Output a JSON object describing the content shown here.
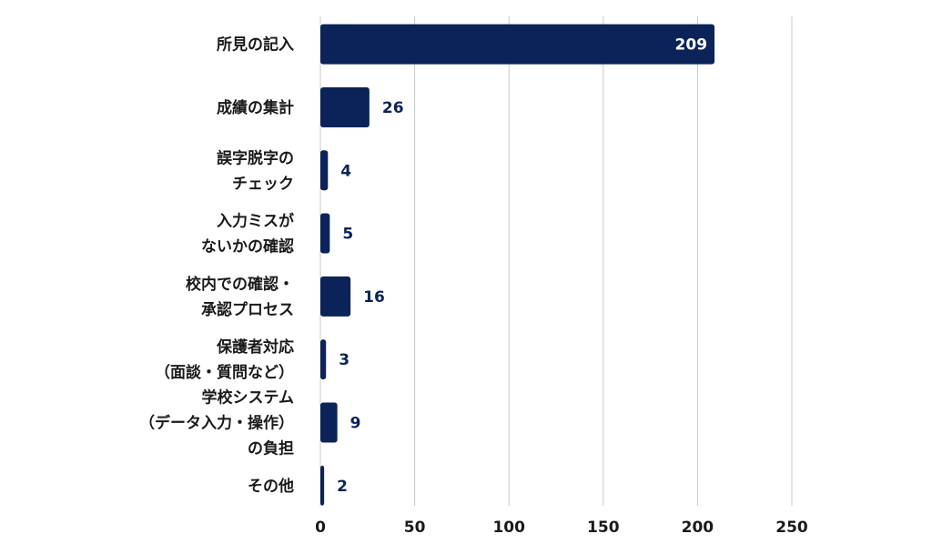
{
  "chart_data": {
    "type": "bar",
    "orientation": "horizontal",
    "categories": [
      [
        "所見の記入"
      ],
      [
        "成績の集計"
      ],
      [
        "誤字脱字の",
        "チェック"
      ],
      [
        "入力ミスが",
        "ないかの確認"
      ],
      [
        "校内での確認・",
        "承認プロセス"
      ],
      [
        "保護者対応",
        "（面談・質問など）"
      ],
      [
        "学校システム",
        "（データ入力・操作）",
        "の負担"
      ],
      [
        "その他"
      ]
    ],
    "values": [
      209,
      26,
      4,
      5,
      16,
      3,
      9,
      2
    ],
    "xlim": [
      0,
      250
    ],
    "xticks": [
      "0",
      "50",
      "100",
      "150",
      "200",
      "250"
    ],
    "grid": true,
    "bar_color": "#0b2358",
    "value_label_inside_color": "#ffffff",
    "value_label_outside_color": "#0b2358",
    "title": "",
    "xlabel": "",
    "ylabel": ""
  }
}
